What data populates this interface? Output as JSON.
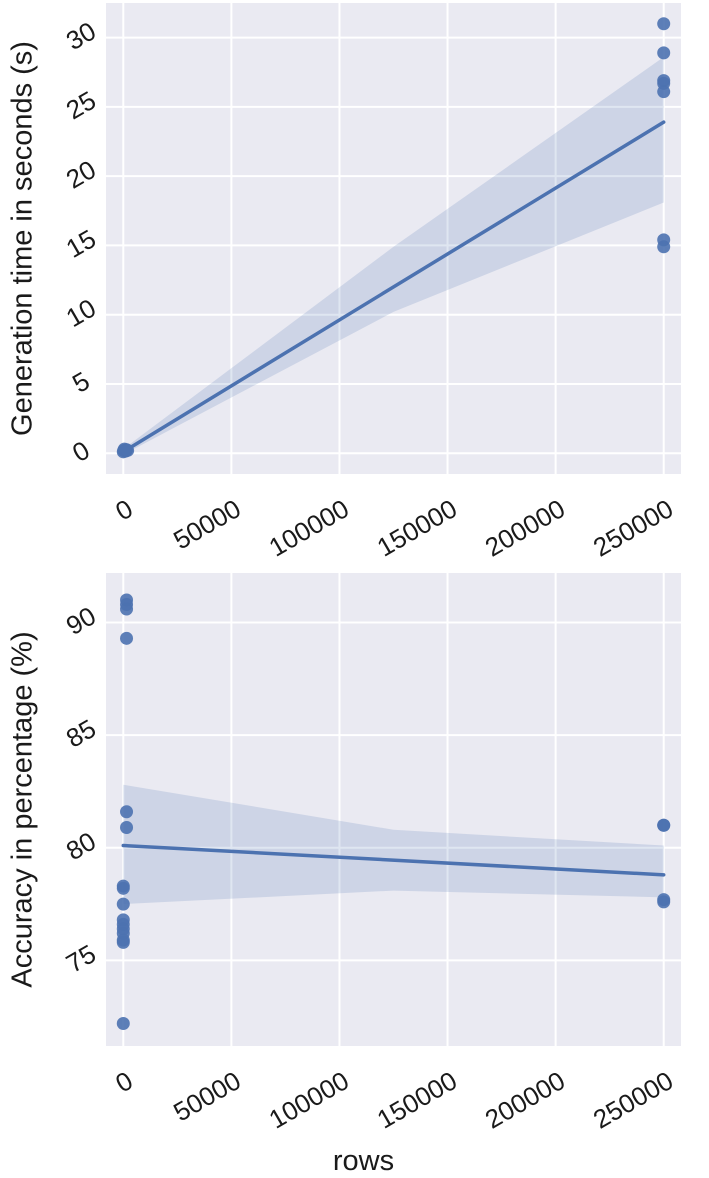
{
  "chart_data": [
    {
      "type": "scatter",
      "ylabel": "Generation time in seconds (s)",
      "xlabel": "",
      "xticks": [
        0,
        50000,
        100000,
        150000,
        200000,
        250000
      ],
      "yticks": [
        0,
        5,
        10,
        15,
        20,
        25,
        30
      ],
      "xlim": [
        -8000,
        258000
      ],
      "ylim": [
        -1.5,
        32.5
      ],
      "grid": true,
      "colors": {
        "points": "#4c72b0",
        "line": "#4c72b0",
        "band": "#4c72b0",
        "background": "#eaeaf2"
      },
      "points": [
        {
          "x": 0,
          "y": 0.1
        },
        {
          "x": 200,
          "y": 0.2
        },
        {
          "x": 500,
          "y": 0.3
        },
        {
          "x": 1000,
          "y": 0.15
        },
        {
          "x": 1500,
          "y": 0.25
        },
        {
          "x": 2000,
          "y": 0.2
        },
        {
          "x": 250000,
          "y": 31.0
        },
        {
          "x": 250000,
          "y": 28.9
        },
        {
          "x": 250000,
          "y": 26.9
        },
        {
          "x": 250000,
          "y": 26.7
        },
        {
          "x": 250000,
          "y": 26.1
        },
        {
          "x": 250000,
          "y": 15.4
        },
        {
          "x": 250000,
          "y": 14.9
        }
      ],
      "regression": {
        "x": [
          0,
          250000
        ],
        "y": [
          0.1,
          23.9
        ]
      },
      "ci_band": {
        "x": [
          0,
          125000,
          250000
        ],
        "lower": [
          -0.1,
          10.2,
          18.1
        ],
        "upper": [
          0.3,
          14.9,
          28.6
        ]
      }
    },
    {
      "type": "scatter",
      "ylabel": "Accuracy in percentage (%)",
      "xlabel": "rows",
      "xticks": [
        0,
        50000,
        100000,
        150000,
        200000,
        250000
      ],
      "yticks": [
        75,
        80,
        85,
        90
      ],
      "xlim": [
        -8000,
        258000
      ],
      "ylim": [
        71.2,
        92.2
      ],
      "grid": true,
      "colors": {
        "points": "#4c72b0",
        "line": "#4c72b0",
        "band": "#4c72b0",
        "background": "#eaeaf2"
      },
      "points": [
        {
          "x": 1500,
          "y": 91.0
        },
        {
          "x": 1500,
          "y": 90.8
        },
        {
          "x": 1500,
          "y": 90.6
        },
        {
          "x": 1500,
          "y": 89.3
        },
        {
          "x": 1500,
          "y": 81.6
        },
        {
          "x": 1500,
          "y": 80.9
        },
        {
          "x": 0,
          "y": 78.3
        },
        {
          "x": 0,
          "y": 78.2
        },
        {
          "x": 0,
          "y": 77.5
        },
        {
          "x": 0,
          "y": 76.8
        },
        {
          "x": 0,
          "y": 76.6
        },
        {
          "x": 0,
          "y": 76.4
        },
        {
          "x": 0,
          "y": 76.2
        },
        {
          "x": 0,
          "y": 75.9
        },
        {
          "x": 0,
          "y": 75.8
        },
        {
          "x": 0,
          "y": 72.2
        },
        {
          "x": 250000,
          "y": 81.0
        },
        {
          "x": 250000,
          "y": 81.0
        },
        {
          "x": 250000,
          "y": 77.7
        },
        {
          "x": 250000,
          "y": 77.6
        }
      ],
      "regression": {
        "x": [
          0,
          250000
        ],
        "y": [
          80.1,
          78.8
        ]
      },
      "ci_band": {
        "x": [
          0,
          125000,
          250000
        ],
        "lower": [
          77.5,
          78.1,
          77.8
        ],
        "upper": [
          82.8,
          80.8,
          80.1
        ]
      }
    }
  ]
}
